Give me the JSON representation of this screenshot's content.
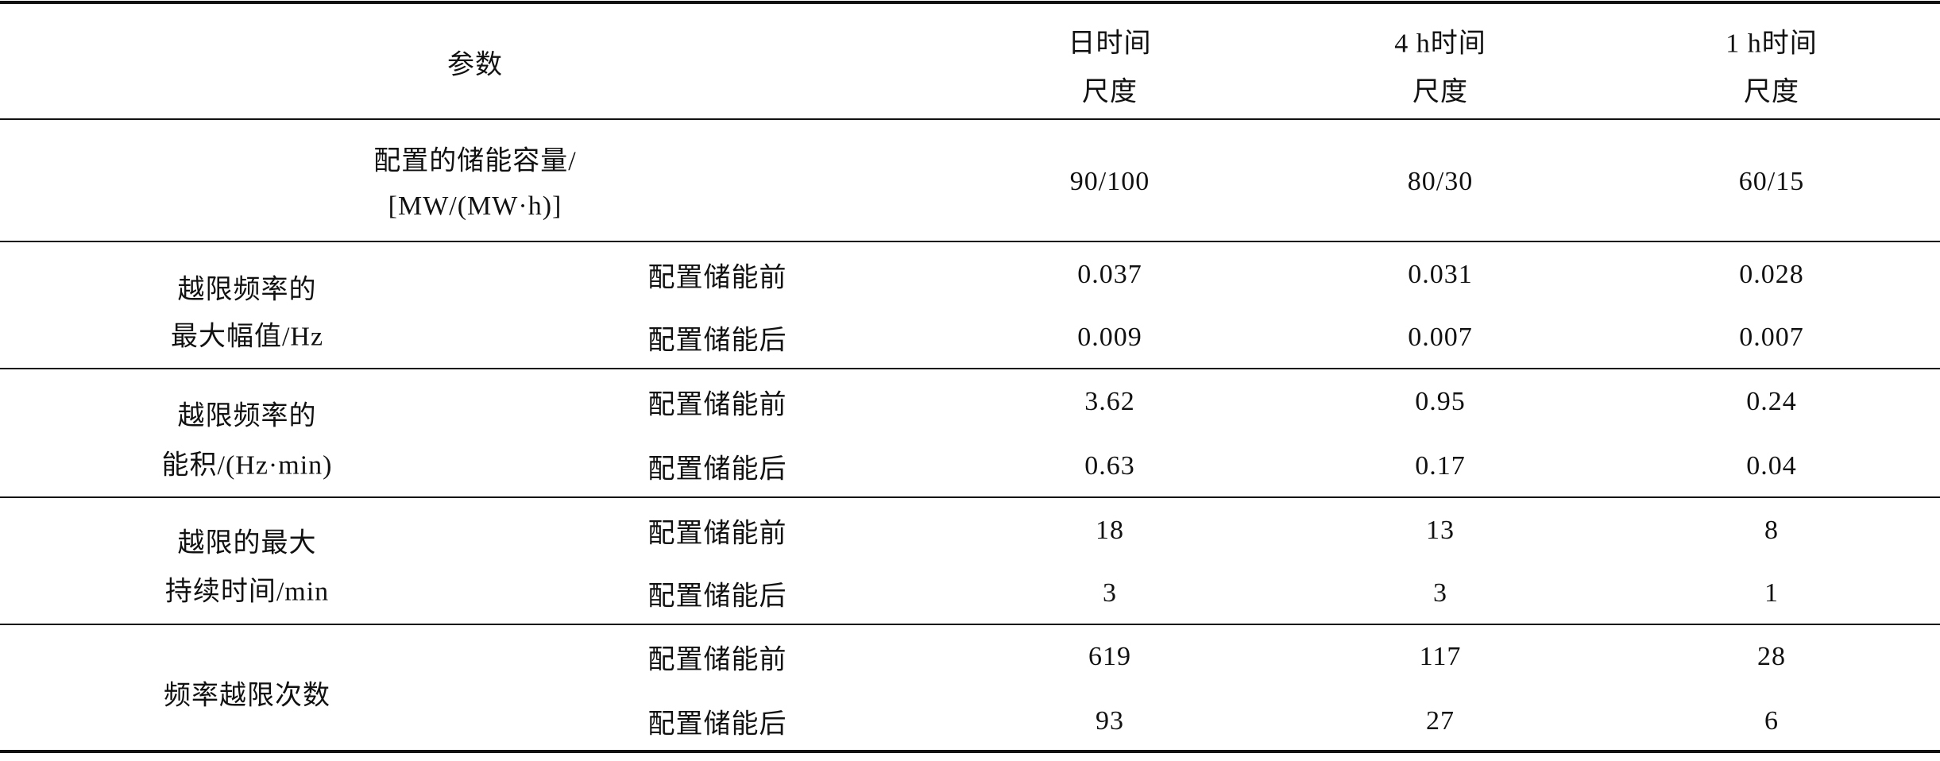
{
  "header": {
    "param": "参数",
    "columns": [
      [
        "日时间",
        "尺度"
      ],
      [
        "4 h时间",
        "尺度"
      ],
      [
        "1 h时间",
        "尺度"
      ]
    ]
  },
  "capacity": {
    "label": [
      "配置的储能容量/",
      "[MW/(MW·h)]"
    ],
    "values": [
      "90/100",
      "80/30",
      "60/15"
    ]
  },
  "groups": [
    {
      "label": [
        "越限频率的",
        "最大幅值/Hz"
      ],
      "rows": [
        {
          "condition": "配置储能前",
          "values": [
            "0.037",
            "0.031",
            "0.028"
          ]
        },
        {
          "condition": "配置储能后",
          "values": [
            "0.009",
            "0.007",
            "0.007"
          ]
        }
      ]
    },
    {
      "label": [
        "越限频率的",
        "能积/(Hz·min)"
      ],
      "rows": [
        {
          "condition": "配置储能前",
          "values": [
            "3.62",
            "0.95",
            "0.24"
          ]
        },
        {
          "condition": "配置储能后",
          "values": [
            "0.63",
            "0.17",
            "0.04"
          ]
        }
      ]
    },
    {
      "label": [
        "越限的最大",
        "持续时间/min"
      ],
      "rows": [
        {
          "condition": "配置储能前",
          "values": [
            "18",
            "13",
            "8"
          ]
        },
        {
          "condition": "配置储能后",
          "values": [
            "3",
            "3",
            "1"
          ]
        }
      ]
    },
    {
      "label": [
        "频率越限次数"
      ],
      "rows": [
        {
          "condition": "配置储能前",
          "values": [
            "619",
            "117",
            "28"
          ]
        },
        {
          "condition": "配置储能后",
          "values": [
            "93",
            "27",
            "6"
          ]
        }
      ]
    }
  ]
}
